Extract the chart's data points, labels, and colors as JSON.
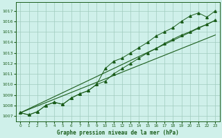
{
  "xlabel": "Graphe pression niveau de la mer (hPa)",
  "x": [
    0,
    1,
    2,
    3,
    4,
    5,
    6,
    7,
    8,
    9,
    10,
    11,
    12,
    13,
    14,
    15,
    16,
    17,
    18,
    19,
    20,
    21,
    22,
    23
  ],
  "y_upper": [
    1007.3,
    1007.1,
    1007.4,
    1008.0,
    1008.3,
    1008.1,
    1008.7,
    1009.1,
    1009.4,
    1010.0,
    1011.5,
    1012.2,
    1012.5,
    1013.0,
    1013.5,
    1014.0,
    1014.6,
    1015.0,
    1015.4,
    1016.0,
    1016.5,
    1016.8,
    1016.4,
    1017.0
  ],
  "y_lower": [
    1007.3,
    1007.1,
    1007.4,
    1008.0,
    1008.3,
    1008.1,
    1008.7,
    1009.1,
    1009.4,
    1010.0,
    1010.3,
    1011.0,
    1011.5,
    1012.0,
    1012.5,
    1013.0,
    1013.4,
    1013.9,
    1014.3,
    1014.7,
    1015.0,
    1015.4,
    1015.7,
    1016.1
  ],
  "trend1_x": [
    0,
    23
  ],
  "trend1_y": [
    1007.3,
    1016.1
  ],
  "trend2_x": [
    0,
    23
  ],
  "trend2_y": [
    1007.3,
    1014.7
  ],
  "ylim_min": 1006.5,
  "ylim_max": 1017.8,
  "yticks": [
    1007,
    1008,
    1009,
    1010,
    1011,
    1012,
    1013,
    1014,
    1015,
    1016,
    1017
  ],
  "xticks": [
    0,
    1,
    2,
    3,
    4,
    5,
    6,
    7,
    8,
    9,
    10,
    11,
    12,
    13,
    14,
    15,
    16,
    17,
    18,
    19,
    20,
    21,
    22,
    23
  ],
  "line_color": "#1a5c1a",
  "bg_color": "#cff0ea",
  "grid_color": "#a0ccbe",
  "marker": "^",
  "marker_size": 2.5,
  "linewidth": 0.7,
  "trend_linewidth": 0.8
}
